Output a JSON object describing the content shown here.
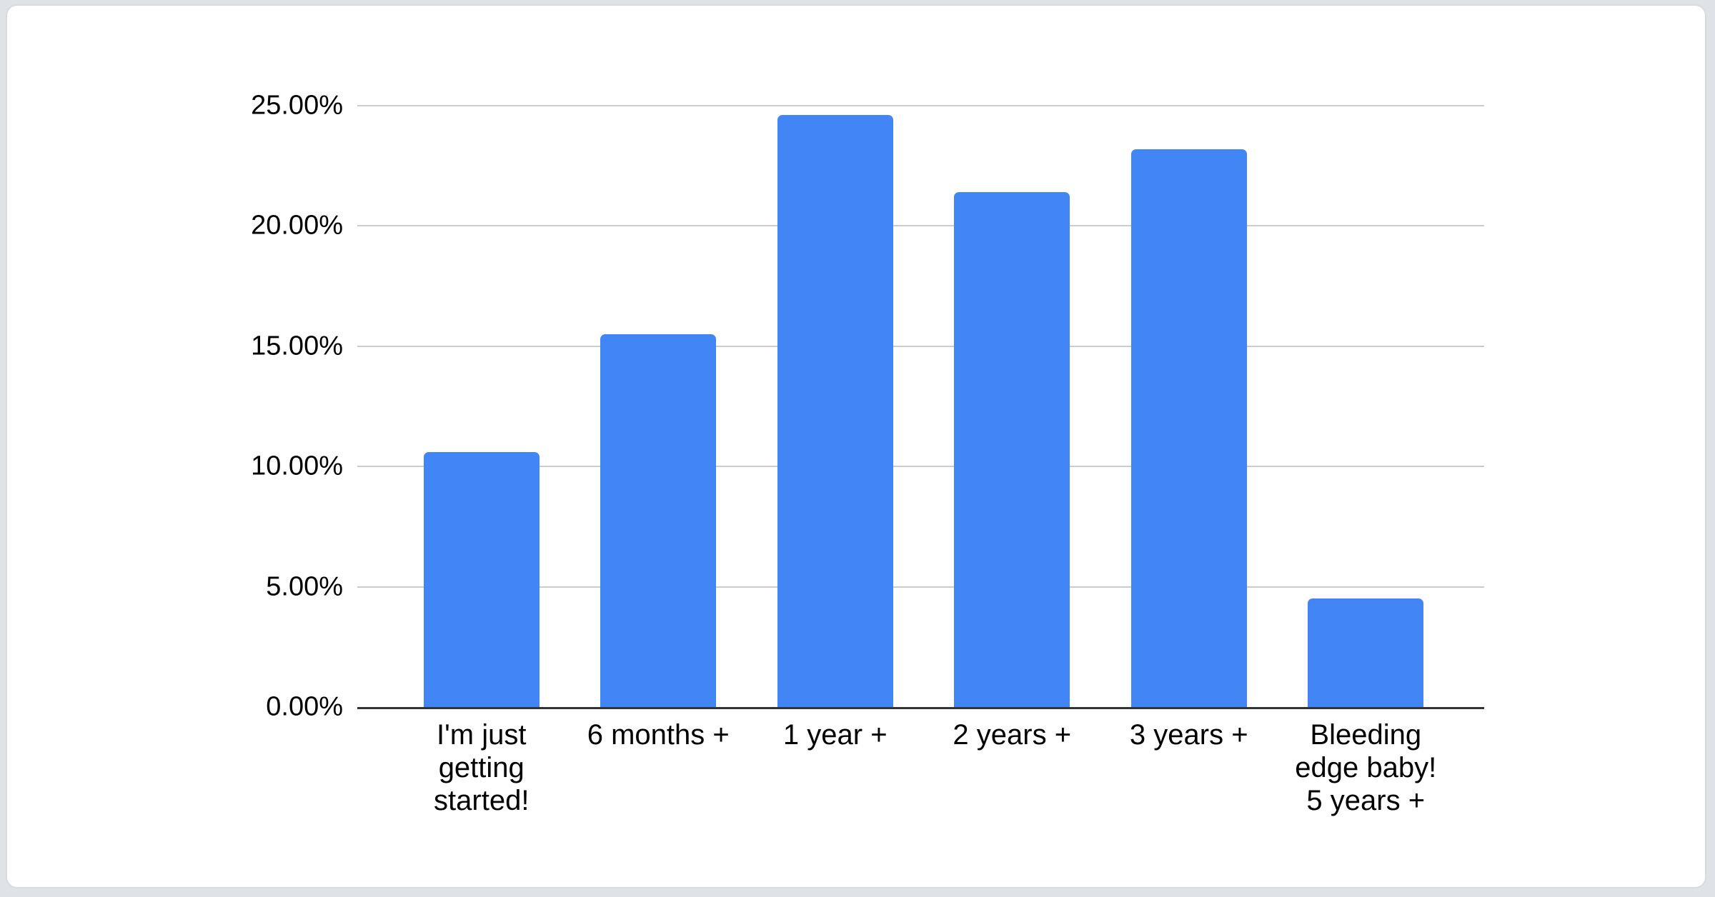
{
  "page": {
    "background_color": "#dfe3e8",
    "card_background_color": "#ffffff",
    "card_border_color": "#d8dbe0"
  },
  "chart_data": {
    "type": "bar",
    "title": "",
    "xlabel": "",
    "ylabel": "",
    "categories": [
      "I'm just\ngetting\nstarted!",
      "6 months +",
      "1 year +",
      "2 years +",
      "3 years +",
      "Bleeding\nedge baby!\n5 years +"
    ],
    "values": [
      10.6,
      15.5,
      24.6,
      21.4,
      23.2,
      4.5
    ],
    "value_unit": "percent",
    "ylim": [
      0,
      25
    ],
    "y_ticks": [
      "0.00%",
      "5.00%",
      "10.00%",
      "15.00%",
      "20.00%",
      "25.00%"
    ],
    "grid": true,
    "legend_position": "none",
    "bar_color": "#4285f4",
    "gridline_color": "#cccccc",
    "axis_line_color": "#333333",
    "text_color": "#000000"
  }
}
